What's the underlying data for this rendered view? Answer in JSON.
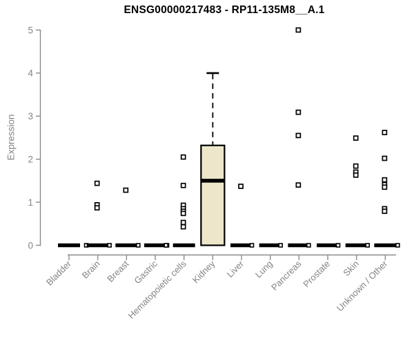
{
  "chart_data": {
    "type": "boxplot",
    "title": "ENSG00000217483 - RP11-135M8__A.1",
    "ylabel": "Expression",
    "xlabel": "",
    "ylim": [
      0,
      5
    ],
    "yticks": [
      0,
      1,
      2,
      3,
      4,
      5
    ],
    "grid": false,
    "legend": "none",
    "colors": {
      "box_fill": "#ece6cb",
      "box_stroke": "#000000",
      "data_color": "#000000",
      "axis_color": "#8a8a8a",
      "text_color": "#848484",
      "title_color": "#000000",
      "background": "#ffffff"
    },
    "categories": [
      "Bladder",
      "Brain",
      "Breast",
      "Gastric",
      "Hematopoietic cells",
      "Kidney",
      "Liver",
      "Lung",
      "Pancreas",
      "Prostate",
      "Skin",
      "Unknown / Other"
    ],
    "series": [
      {
        "category": "Bladder",
        "box": {
          "q1": 0,
          "median": 0,
          "q3": 0,
          "whisker_low": 0,
          "whisker_high": 0
        },
        "points": [],
        "zero_point_offsets": [
          25
        ]
      },
      {
        "category": "Brain",
        "box": {
          "q1": 0,
          "median": 0,
          "q3": 0,
          "whisker_low": 0,
          "whisker_high": 0
        },
        "points": [
          1.44,
          0.94,
          0.87
        ],
        "zero_point_offsets": [
          17
        ]
      },
      {
        "category": "Breast",
        "box": {
          "q1": 0,
          "median": 0,
          "q3": 0,
          "whisker_low": 0,
          "whisker_high": 0
        },
        "points": [
          1.28
        ],
        "zero_point_offsets": [
          17
        ]
      },
      {
        "category": "Gastric",
        "box": {
          "q1": 0,
          "median": 0,
          "q3": 0,
          "whisker_low": 0,
          "whisker_high": 0
        },
        "points": [],
        "zero_point_offsets": [
          17
        ]
      },
      {
        "category": "Hematopoietic cells",
        "box": {
          "q1": 0,
          "median": 0,
          "q3": 0,
          "whisker_low": 0,
          "whisker_high": 0
        },
        "points": [
          2.05,
          1.39,
          0.93,
          0.85,
          0.79,
          0.74,
          0.53,
          0.43
        ],
        "zero_point_offsets": [
          -26
        ]
      },
      {
        "category": "Kidney",
        "box": {
          "q1": 0,
          "median": 1.5,
          "q3": 2.32,
          "whisker_low": 0,
          "whisker_high": 4.0
        },
        "points": [],
        "zero_point_offsets": []
      },
      {
        "category": "Liver",
        "box": {
          "q1": 0,
          "median": 0,
          "q3": 0,
          "whisker_low": 0,
          "whisker_high": 0
        },
        "points": [
          1.37
        ],
        "zero_point_offsets": [
          15
        ]
      },
      {
        "category": "Lung",
        "box": {
          "q1": 0,
          "median": 0,
          "q3": 0,
          "whisker_low": 0,
          "whisker_high": 0
        },
        "points": [],
        "zero_point_offsets": [
          15
        ]
      },
      {
        "category": "Pancreas",
        "box": {
          "q1": 0,
          "median": 0,
          "q3": 0,
          "whisker_low": 0,
          "whisker_high": 0
        },
        "points": [
          5.0,
          3.09,
          2.55,
          1.4
        ],
        "zero_point_offsets": [
          14
        ]
      },
      {
        "category": "Prostate",
        "box": {
          "q1": 0,
          "median": 0,
          "q3": 0,
          "whisker_low": 0,
          "whisker_high": 0
        },
        "points": [],
        "zero_point_offsets": [
          15
        ]
      },
      {
        "category": "Skin",
        "box": {
          "q1": 0,
          "median": 0,
          "q3": 0,
          "whisker_low": 0,
          "whisker_high": 0
        },
        "points": [
          2.49,
          1.84,
          1.7,
          1.63
        ],
        "zero_point_offsets": [
          16
        ]
      },
      {
        "category": "Unknown / Other",
        "box": {
          "q1": 0,
          "median": 0,
          "q3": 0,
          "whisker_low": 0,
          "whisker_high": 0
        },
        "points": [
          2.62,
          2.02,
          1.52,
          1.41,
          1.35,
          0.85,
          0.79
        ],
        "zero_point_offsets": [
          18
        ]
      }
    ]
  }
}
